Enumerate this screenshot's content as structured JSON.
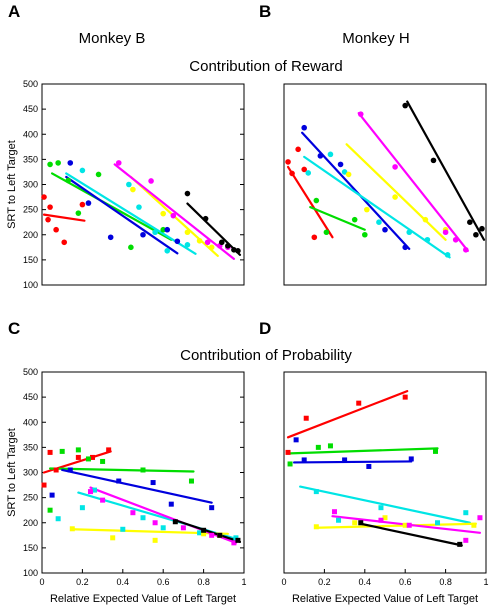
{
  "figure": {
    "titles": {
      "monkey_b": "Monkey B",
      "monkey_h": "Monkey H",
      "reward": "Contribution of Reward",
      "probability": "Contribution of Probability"
    }
  },
  "chart_data": [
    {
      "panel": "A",
      "type": "scatter",
      "title": "",
      "xlabel": "",
      "ylabel": "SRT to Left Target",
      "xlim": [
        0,
        1
      ],
      "ylim": [
        100,
        500
      ],
      "xticks": [],
      "yticks": [
        "100",
        "150",
        "200",
        "250",
        "300",
        "350",
        "400",
        "450",
        "500"
      ],
      "marker": "circle",
      "series": [
        {
          "color": "#ff0000",
          "points": [
            [
              0.01,
              275
            ],
            [
              0.03,
              230
            ],
            [
              0.04,
              255
            ],
            [
              0.07,
              210
            ],
            [
              0.11,
              185
            ],
            [
              0.2,
              260
            ]
          ],
          "fit": [
            [
              0.01,
              240
            ],
            [
              0.21,
              228
            ]
          ]
        },
        {
          "color": "#00dd00",
          "points": [
            [
              0.04,
              340
            ],
            [
              0.08,
              343
            ],
            [
              0.13,
              308
            ],
            [
              0.18,
              243
            ],
            [
              0.28,
              320
            ],
            [
              0.44,
              175
            ],
            [
              0.6,
              210
            ]
          ],
          "fit": [
            [
              0.05,
              322
            ],
            [
              0.64,
              190
            ]
          ]
        },
        {
          "color": "#0000dd",
          "points": [
            [
              0.14,
              343
            ],
            [
              0.23,
              263
            ],
            [
              0.34,
              195
            ],
            [
              0.5,
              200
            ],
            [
              0.62,
              210
            ],
            [
              0.67,
              187
            ]
          ],
          "fit": [
            [
              0.12,
              315
            ],
            [
              0.67,
              163
            ]
          ]
        },
        {
          "color": "#00e5e5",
          "points": [
            [
              0.2,
              328
            ],
            [
              0.43,
              300
            ],
            [
              0.48,
              255
            ],
            [
              0.56,
              205
            ],
            [
              0.62,
              168
            ],
            [
              0.72,
              180
            ]
          ],
          "fit": [
            [
              0.12,
              322
            ],
            [
              0.76,
              162
            ]
          ]
        },
        {
          "color": "#ffff00",
          "points": [
            [
              0.45,
              290
            ],
            [
              0.6,
              242
            ],
            [
              0.72,
              205
            ],
            [
              0.78,
              188
            ],
            [
              0.84,
              175
            ]
          ],
          "fit": [
            [
              0.44,
              315
            ],
            [
              0.87,
              158
            ]
          ]
        },
        {
          "color": "#ff00ff",
          "points": [
            [
              0.38,
              343
            ],
            [
              0.54,
              307
            ],
            [
              0.65,
              238
            ],
            [
              0.82,
              185
            ],
            [
              0.88,
              178
            ],
            [
              0.92,
              175
            ]
          ],
          "fit": [
            [
              0.36,
              340
            ],
            [
              0.95,
              152
            ]
          ]
        },
        {
          "color": "#000000",
          "points": [
            [
              0.72,
              282
            ],
            [
              0.81,
              232
            ],
            [
              0.89,
              185
            ],
            [
              0.92,
              178
            ],
            [
              0.95,
              170
            ],
            [
              0.97,
              168
            ]
          ],
          "fit": [
            [
              0.72,
              262
            ],
            [
              0.98,
              160
            ]
          ]
        }
      ]
    },
    {
      "panel": "B",
      "type": "scatter",
      "title": "",
      "xlabel": "",
      "ylabel": "",
      "xlim": [
        0,
        1
      ],
      "ylim": [
        100,
        500
      ],
      "xticks": [],
      "yticks": [],
      "marker": "circle",
      "series": [
        {
          "color": "#ff0000",
          "points": [
            [
              0.02,
              345
            ],
            [
              0.04,
              322
            ],
            [
              0.07,
              370
            ],
            [
              0.1,
              330
            ],
            [
              0.15,
              195
            ]
          ],
          "fit": [
            [
              0.02,
              335
            ],
            [
              0.24,
              195
            ]
          ]
        },
        {
          "color": "#00dd00",
          "points": [
            [
              0.16,
              268
            ],
            [
              0.21,
              205
            ],
            [
              0.35,
              230
            ],
            [
              0.4,
              200
            ]
          ],
          "fit": [
            [
              0.13,
              255
            ],
            [
              0.4,
              210
            ]
          ]
        },
        {
          "color": "#0000dd",
          "points": [
            [
              0.1,
              413
            ],
            [
              0.18,
              357
            ],
            [
              0.28,
              340
            ],
            [
              0.5,
              210
            ],
            [
              0.6,
              175
            ]
          ],
          "fit": [
            [
              0.09,
              403
            ],
            [
              0.62,
              172
            ]
          ]
        },
        {
          "color": "#00e5e5",
          "points": [
            [
              0.12,
              323
            ],
            [
              0.23,
              360
            ],
            [
              0.3,
              325
            ],
            [
              0.47,
              225
            ],
            [
              0.62,
              205
            ],
            [
              0.71,
              190
            ],
            [
              0.81,
              160
            ]
          ],
          "fit": [
            [
              0.1,
              355
            ],
            [
              0.82,
              155
            ]
          ]
        },
        {
          "color": "#ffff00",
          "points": [
            [
              0.32,
              320
            ],
            [
              0.41,
              250
            ],
            [
              0.55,
              275
            ],
            [
              0.7,
              230
            ],
            [
              0.8,
              210
            ]
          ],
          "fit": [
            [
              0.31,
              380
            ],
            [
              0.8,
              190
            ]
          ]
        },
        {
          "color": "#ff00ff",
          "points": [
            [
              0.38,
              440
            ],
            [
              0.55,
              335
            ],
            [
              0.8,
              205
            ],
            [
              0.85,
              190
            ],
            [
              0.9,
              170
            ]
          ],
          "fit": [
            [
              0.37,
              442
            ],
            [
              0.91,
              168
            ]
          ]
        },
        {
          "color": "#000000",
          "points": [
            [
              0.6,
              457
            ],
            [
              0.74,
              348
            ],
            [
              0.92,
              225
            ],
            [
              0.95,
              200
            ],
            [
              0.98,
              212
            ]
          ],
          "fit": [
            [
              0.61,
              465
            ],
            [
              0.99,
              190
            ]
          ]
        }
      ]
    },
    {
      "panel": "C",
      "type": "scatter",
      "title": "",
      "xlabel": "Relative Expected Value of Left Target",
      "ylabel": "SRT to Left Target",
      "xlim": [
        0,
        1
      ],
      "ylim": [
        100,
        500
      ],
      "xticks": [
        "0",
        "0.2",
        "0.4",
        "0.6",
        "0.8",
        "1"
      ],
      "yticks": [
        "100",
        "150",
        "200",
        "250",
        "300",
        "350",
        "400",
        "450",
        "500"
      ],
      "marker": "square",
      "series": [
        {
          "color": "#ff0000",
          "points": [
            [
              0.01,
              275
            ],
            [
              0.04,
              340
            ],
            [
              0.07,
              305
            ],
            [
              0.18,
              330
            ],
            [
              0.25,
              330
            ],
            [
              0.33,
              345
            ]
          ],
          "fit": [
            [
              0.01,
              300
            ],
            [
              0.34,
              342
            ]
          ]
        },
        {
          "color": "#00dd00",
          "points": [
            [
              0.04,
              225
            ],
            [
              0.1,
              342
            ],
            [
              0.18,
              345
            ],
            [
              0.23,
              327
            ],
            [
              0.3,
              322
            ],
            [
              0.5,
              305
            ],
            [
              0.74,
              283
            ]
          ],
          "fit": [
            [
              0.04,
              308
            ],
            [
              0.75,
              302
            ]
          ]
        },
        {
          "color": "#0000dd",
          "points": [
            [
              0.05,
              255
            ],
            [
              0.14,
              305
            ],
            [
              0.38,
              283
            ],
            [
              0.55,
              280
            ],
            [
              0.64,
              237
            ],
            [
              0.84,
              230
            ]
          ],
          "fit": [
            [
              0.1,
              305
            ],
            [
              0.84,
              240
            ]
          ]
        },
        {
          "color": "#00e5e5",
          "points": [
            [
              0.08,
              208
            ],
            [
              0.2,
              230
            ],
            [
              0.26,
              265
            ],
            [
              0.4,
              187
            ],
            [
              0.5,
              210
            ],
            [
              0.6,
              190
            ],
            [
              0.78,
              180
            ],
            [
              0.96,
              170
            ]
          ],
          "fit": [
            [
              0.18,
              260
            ],
            [
              0.96,
              168
            ]
          ]
        },
        {
          "color": "#ffff00",
          "points": [
            [
              0.15,
              188
            ],
            [
              0.35,
              170
            ],
            [
              0.56,
              165
            ],
            [
              0.8,
              178
            ],
            [
              0.88,
              175
            ]
          ],
          "fit": [
            [
              0.15,
              187
            ],
            [
              0.92,
              178
            ]
          ]
        },
        {
          "color": "#ff00ff",
          "points": [
            [
              0.24,
              262
            ],
            [
              0.3,
              245
            ],
            [
              0.45,
              220
            ],
            [
              0.56,
              200
            ],
            [
              0.7,
              190
            ],
            [
              0.84,
              175
            ],
            [
              0.95,
              160
            ]
          ],
          "fit": [
            [
              0.24,
              270
            ],
            [
              0.96,
              160
            ]
          ]
        },
        {
          "color": "#000000",
          "points": [
            [
              0.66,
              202
            ],
            [
              0.8,
              185
            ],
            [
              0.88,
              175
            ],
            [
              0.97,
              165
            ]
          ],
          "fit": [
            [
              0.66,
              205
            ],
            [
              0.98,
              162
            ]
          ]
        }
      ]
    },
    {
      "panel": "D",
      "type": "scatter",
      "title": "",
      "xlabel": "Relative Expected Value of Left Target",
      "ylabel": "",
      "xlim": [
        0,
        1
      ],
      "ylim": [
        100,
        500
      ],
      "xticks": [
        "0",
        "0.2",
        "0.4",
        "0.6",
        "0.8",
        "1"
      ],
      "yticks": [],
      "marker": "square",
      "series": [
        {
          "color": "#ff0000",
          "points": [
            [
              0.02,
              340
            ],
            [
              0.11,
              408
            ],
            [
              0.37,
              438
            ],
            [
              0.6,
              450
            ]
          ],
          "fit": [
            [
              0.02,
              370
            ],
            [
              0.61,
              462
            ]
          ]
        },
        {
          "color": "#00dd00",
          "points": [
            [
              0.03,
              317
            ],
            [
              0.17,
              350
            ],
            [
              0.23,
              353
            ],
            [
              0.75,
              342
            ]
          ],
          "fit": [
            [
              0.03,
              338
            ],
            [
              0.76,
              348
            ]
          ]
        },
        {
          "color": "#0000dd",
          "points": [
            [
              0.06,
              365
            ],
            [
              0.1,
              325
            ],
            [
              0.3,
              325
            ],
            [
              0.42,
              312
            ],
            [
              0.63,
              327
            ]
          ],
          "fit": [
            [
              0.05,
              320
            ],
            [
              0.63,
              322
            ]
          ]
        },
        {
          "color": "#00e5e5",
          "points": [
            [
              0.16,
              262
            ],
            [
              0.27,
              205
            ],
            [
              0.48,
              230
            ],
            [
              0.76,
              200
            ],
            [
              0.9,
              220
            ]
          ],
          "fit": [
            [
              0.08,
              272
            ],
            [
              0.92,
              200
            ]
          ]
        },
        {
          "color": "#ffff00",
          "points": [
            [
              0.16,
              192
            ],
            [
              0.35,
              200
            ],
            [
              0.5,
              210
            ],
            [
              0.6,
              195
            ],
            [
              0.94,
              195
            ]
          ],
          "fit": [
            [
              0.16,
              190
            ],
            [
              0.95,
              198
            ]
          ]
        },
        {
          "color": "#ff00ff",
          "points": [
            [
              0.25,
              222
            ],
            [
              0.48,
              205
            ],
            [
              0.62,
              195
            ],
            [
              0.9,
              165
            ],
            [
              0.97,
              210
            ]
          ],
          "fit": [
            [
              0.24,
              213
            ],
            [
              0.97,
              180
            ]
          ]
        },
        {
          "color": "#000000",
          "points": [
            [
              0.38,
              200
            ],
            [
              0.87,
              157
            ]
          ],
          "fit": [
            [
              0.38,
              198
            ],
            [
              0.88,
              155
            ]
          ]
        }
      ]
    }
  ]
}
